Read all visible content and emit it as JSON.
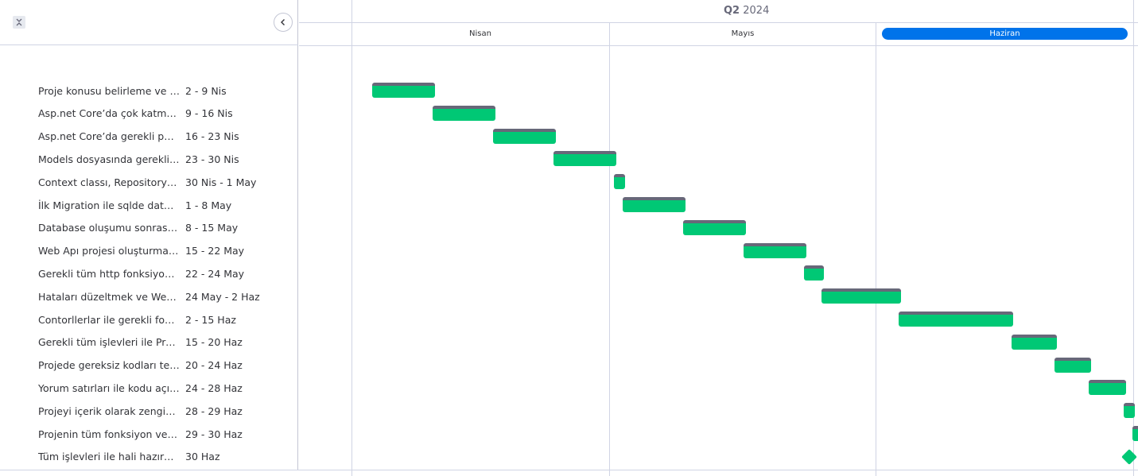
{
  "timeline": {
    "quarter_bold": "Q2",
    "quarter_year": "2024",
    "months": [
      "Nisan",
      "Mayıs",
      "Haziran"
    ],
    "current_month_index": 2
  },
  "icons": {
    "collapse": "collapse-icon",
    "back": "chevron-left-icon"
  },
  "colors": {
    "bar": "#00c875",
    "bar_top": "#676879",
    "current_month": "#0073ea",
    "grid": "#d0d4e4"
  },
  "tasks": [
    {
      "name": "Proje konusu belirleme ve yazılım dili seçimi",
      "date": "2 - 9 Nis"
    },
    {
      "name": "Asp.net Core’da çok katmanlı mimari",
      "date": "9 - 16 Nis"
    },
    {
      "name": "Asp.net Core’da gerekli paketlerin kurulumu",
      "date": "16 - 23 Nis"
    },
    {
      "name": "Models dosyasında gerekli Sql tabloları",
      "date": "23 - 30 Nis"
    },
    {
      "name": "Context classı, Repository ve Interface",
      "date": "30 Nis - 1 May"
    },
    {
      "name": "İlk Migration ile sqlde database oluşturma",
      "date": "1 - 8 May"
    },
    {
      "name": "Database oluşumu sonrası Repository",
      "date": "8 - 15 May"
    },
    {
      "name": "Web Apı projesi oluşturmak ve bağlamak",
      "date": "15 - 22 May"
    },
    {
      "name": "Gerekli tüm http fonksiyonlarının yazılması",
      "date": "22 - 24 May"
    },
    {
      "name": "Hataları düzeltmek ve Web API testi",
      "date": "24 May - 2 Haz"
    },
    {
      "name": "Contorllerlar ile gerekli fonksiyonlar",
      "date": "2 - 15 Haz"
    },
    {
      "name": "Gerekli tüm işlevleri ile Projenin tamamlanması",
      "date": "15 - 20 Haz"
    },
    {
      "name": "Projede gereksiz kodları temizleme",
      "date": "20 - 24 Haz"
    },
    {
      "name": "Yorum satırları ile kodu açıklama",
      "date": "24 - 28 Haz"
    },
    {
      "name": "Projeyi içerik olarak zenginleştirme",
      "date": "28 - 29 Haz"
    },
    {
      "name": "Projenin tüm fonksiyon ve işlevlerinin testi",
      "date": "29 - 30 Haz"
    },
    {
      "name": "Tüm işlevleri ile hali hazırda bir proje",
      "date": "30 Haz"
    }
  ],
  "chart_data": {
    "type": "gantt",
    "tasks": [
      {
        "start": "2024-04-02",
        "end": "2024-04-09"
      },
      {
        "start": "2024-04-09",
        "end": "2024-04-16"
      },
      {
        "start": "2024-04-16",
        "end": "2024-04-23"
      },
      {
        "start": "2024-04-23",
        "end": "2024-04-30"
      },
      {
        "start": "2024-04-30",
        "end": "2024-05-01"
      },
      {
        "start": "2024-05-01",
        "end": "2024-05-08"
      },
      {
        "start": "2024-05-08",
        "end": "2024-05-15"
      },
      {
        "start": "2024-05-15",
        "end": "2024-05-22"
      },
      {
        "start": "2024-05-22",
        "end": "2024-05-24"
      },
      {
        "start": "2024-05-24",
        "end": "2024-06-02"
      },
      {
        "start": "2024-06-02",
        "end": "2024-06-15"
      },
      {
        "start": "2024-06-15",
        "end": "2024-06-20"
      },
      {
        "start": "2024-06-20",
        "end": "2024-06-24"
      },
      {
        "start": "2024-06-24",
        "end": "2024-06-28"
      },
      {
        "start": "2024-06-28",
        "end": "2024-06-29"
      },
      {
        "start": "2024-06-29",
        "end": "2024-06-30"
      },
      {
        "start": "2024-06-30",
        "end": "2024-06-30",
        "milestone": true
      }
    ]
  }
}
